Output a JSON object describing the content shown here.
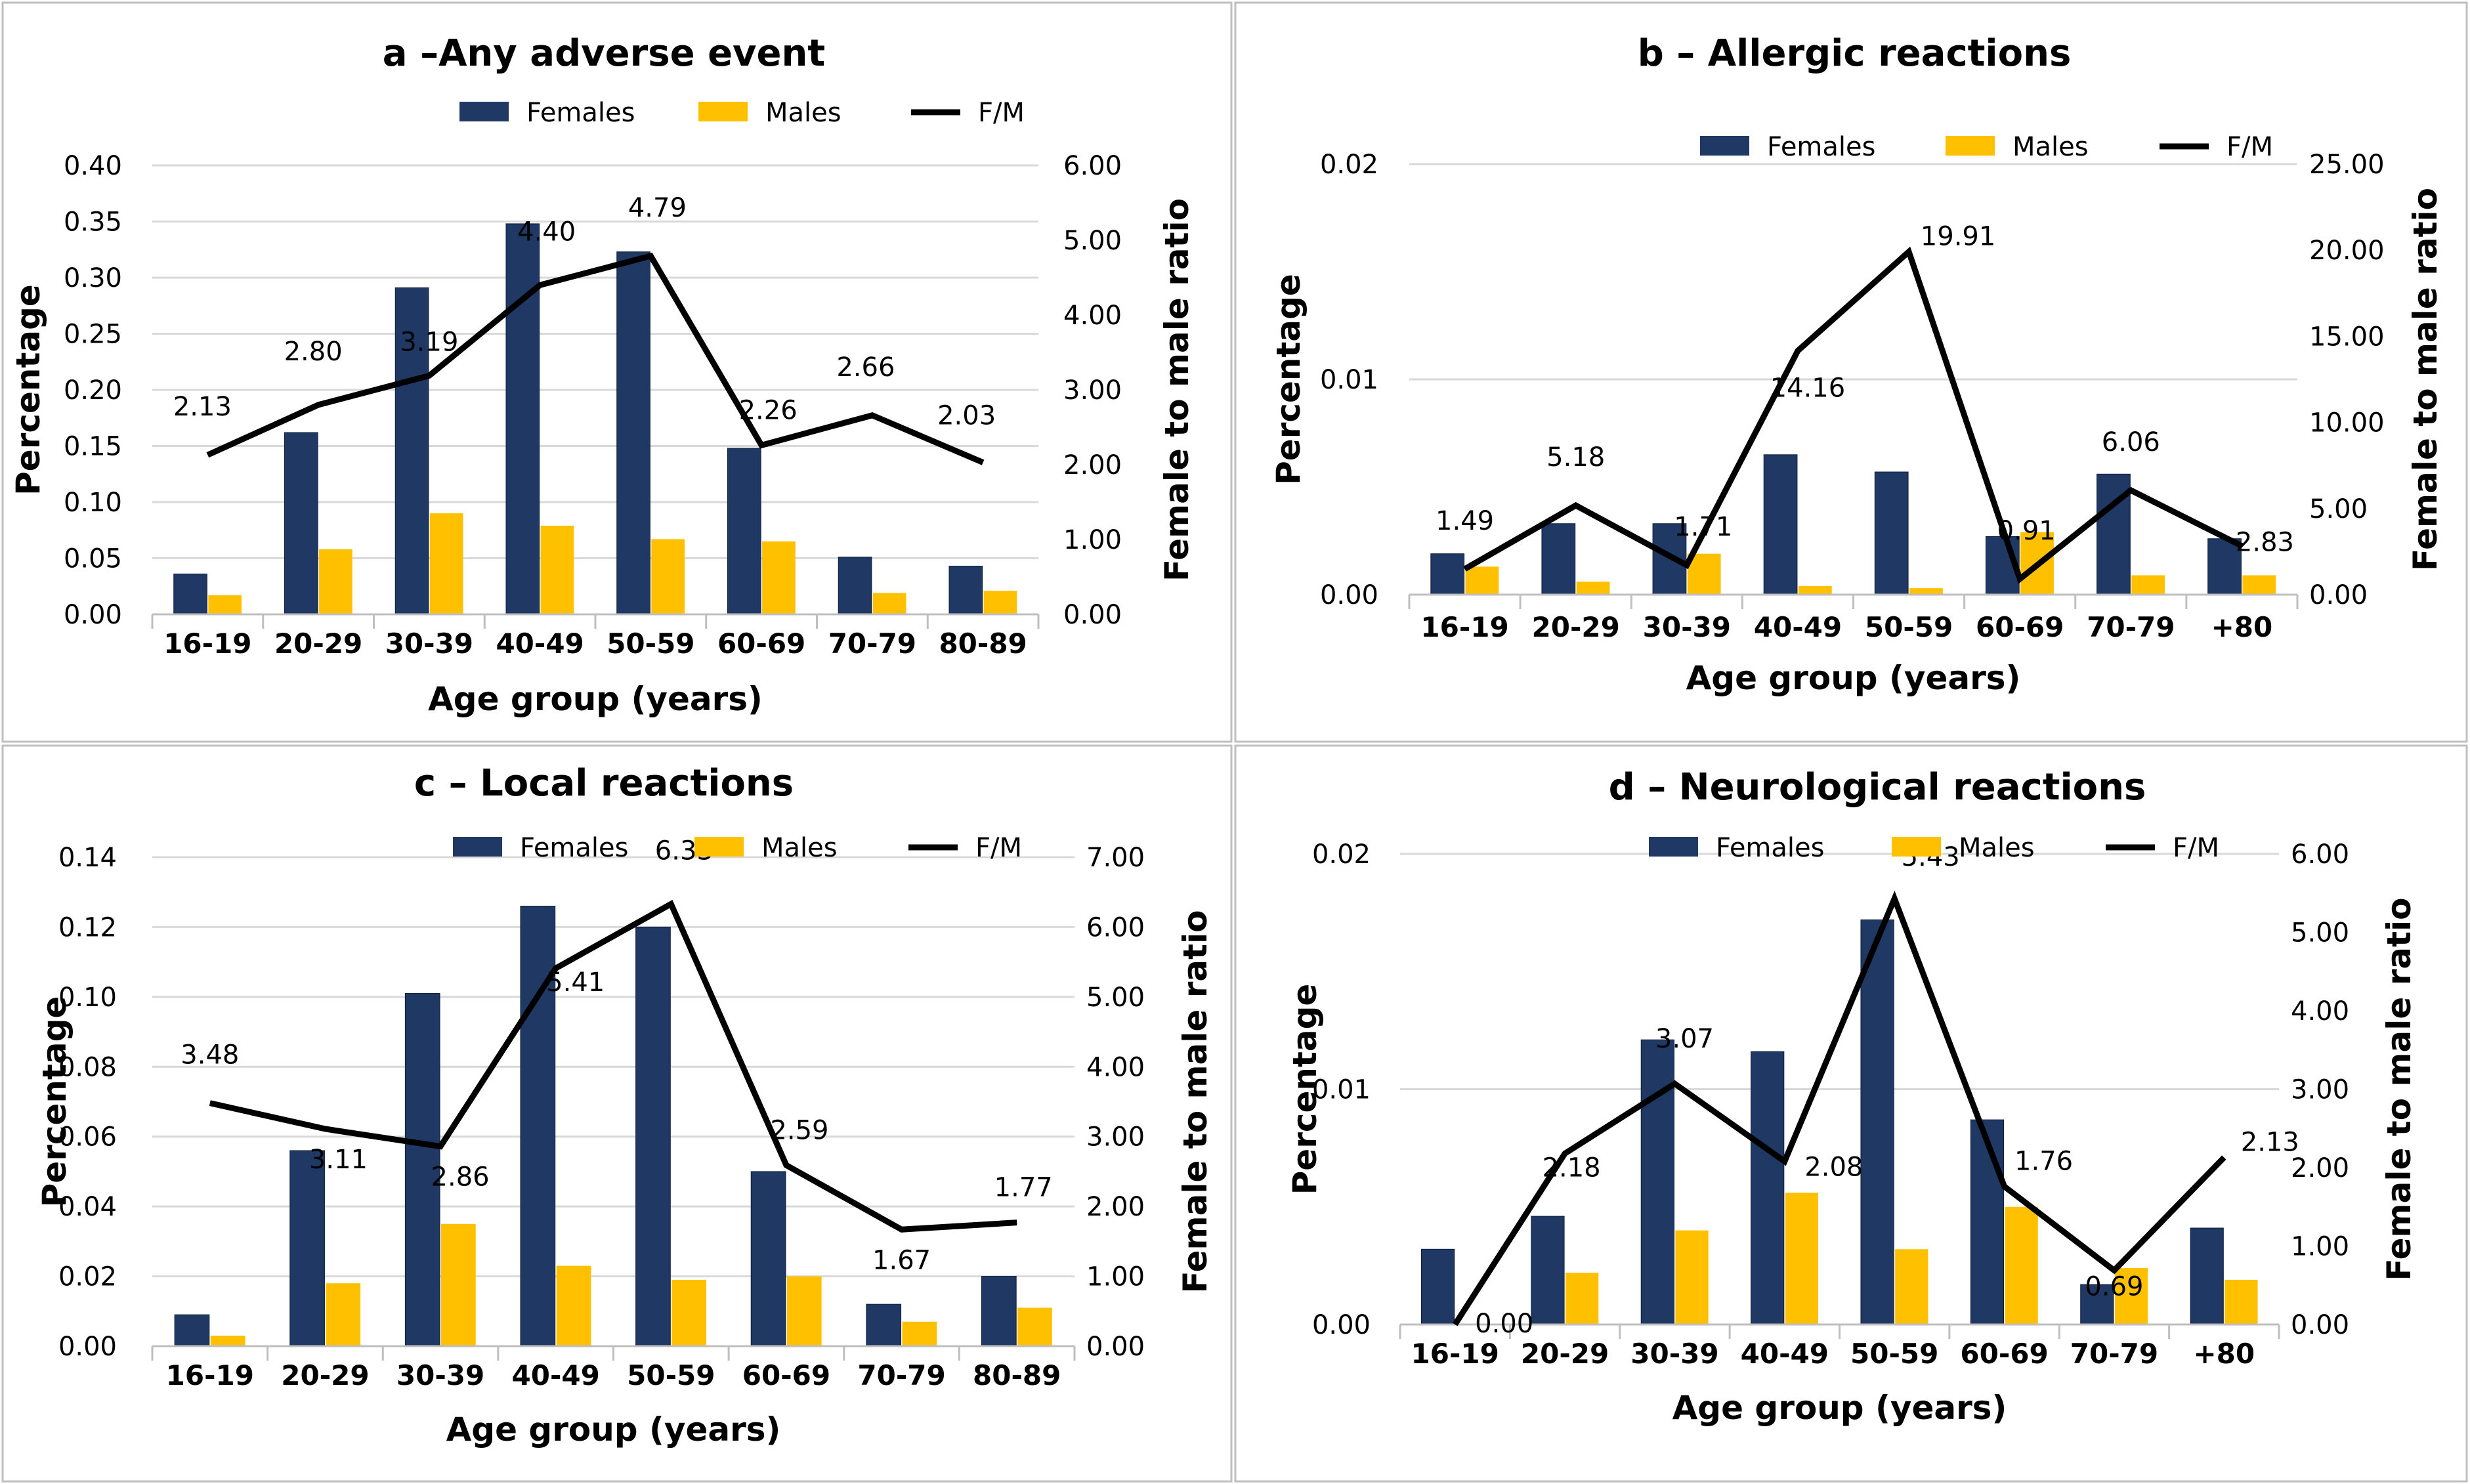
{
  "colors": {
    "females": "#1F3864",
    "males": "#FFC000",
    "ratio": "#000000",
    "grid": "#D9D9D9",
    "border": "#BFBFBF"
  },
  "legend": {
    "females": "Females",
    "males": "Males",
    "ratio": "F/M"
  },
  "chart_data": [
    {
      "type": "bar",
      "title": "a –Any adverse event",
      "xlabel": "Age group (years)",
      "ylabel": "Percentage",
      "y2label": "Female to male ratio",
      "categories": [
        "16-19",
        "20-29",
        "30-39",
        "40-49",
        "50-59",
        "60-69",
        "70-79",
        "80-89"
      ],
      "ylim": [
        0,
        0.4
      ],
      "yticks": [
        "0.00",
        "0.05",
        "0.10",
        "0.15",
        "0.20",
        "0.25",
        "0.30",
        "0.35",
        "0.40"
      ],
      "y2lim": [
        0,
        6
      ],
      "y2ticks": [
        "0.00",
        "1.00",
        "2.00",
        "3.00",
        "4.00",
        "5.00",
        "6.00"
      ],
      "series": [
        {
          "name": "Females",
          "values": [
            0.036,
            0.162,
            0.291,
            0.348,
            0.323,
            0.148,
            0.051,
            0.043
          ]
        },
        {
          "name": "Males",
          "values": [
            0.017,
            0.058,
            0.09,
            0.079,
            0.067,
            0.065,
            0.019,
            0.021
          ]
        },
        {
          "name": "F/M",
          "values": [
            2.13,
            2.8,
            3.19,
            4.4,
            4.79,
            2.26,
            2.66,
            2.03
          ]
        }
      ],
      "ratio_labels": [
        "2.13",
        "2.80",
        "3.19",
        "4.40",
        "4.79",
        "2.26",
        "2.66",
        "2.03"
      ]
    },
    {
      "type": "bar",
      "title": "b – Allergic reactions",
      "xlabel": "Age group (years)",
      "ylabel": "Percentage",
      "y2label": "Female to male ratio",
      "categories": [
        "16-19",
        "20-29",
        "30-39",
        "40-49",
        "50-59",
        "60-69",
        "70-79",
        "+80"
      ],
      "ylim": [
        0,
        0.02
      ],
      "yticks": [
        "0.00",
        "0.01",
        "0.02"
      ],
      "y2lim": [
        0,
        25
      ],
      "y2ticks": [
        "0.00",
        "5.00",
        "10.00",
        "15.00",
        "20.00",
        "25.00"
      ],
      "series": [
        {
          "name": "Females",
          "values": [
            0.0019,
            0.0033,
            0.0033,
            0.0065,
            0.0057,
            0.0027,
            0.0056,
            0.0026
          ]
        },
        {
          "name": "Males",
          "values": [
            0.0013,
            0.0006,
            0.0019,
            0.0004,
            0.0003,
            0.0029,
            0.0009,
            0.0009
          ]
        },
        {
          "name": "F/M",
          "values": [
            1.49,
            5.18,
            1.71,
            14.16,
            19.91,
            0.91,
            6.06,
            2.83
          ]
        }
      ],
      "ratio_labels": [
        "1.49",
        "5.18",
        "1.71",
        "14.16",
        "19.91",
        "0.91",
        "6.06",
        "2.83"
      ]
    },
    {
      "type": "bar",
      "title": "c – Local reactions",
      "xlabel": "Age group (years)",
      "ylabel": "Percentage",
      "y2label": "Female to male ratio",
      "categories": [
        "16-19",
        "20-29",
        "30-39",
        "40-49",
        "50-59",
        "60-69",
        "70-79",
        "80-89"
      ],
      "ylim": [
        0,
        0.14
      ],
      "yticks": [
        "0.00",
        "0.02",
        "0.04",
        "0.06",
        "0.08",
        "0.10",
        "0.12",
        "0.14"
      ],
      "y2lim": [
        0,
        7
      ],
      "y2ticks": [
        "0.00",
        "1.00",
        "2.00",
        "3.00",
        "4.00",
        "5.00",
        "6.00",
        "7.00"
      ],
      "series": [
        {
          "name": "Females",
          "values": [
            0.009,
            0.056,
            0.101,
            0.126,
            0.12,
            0.05,
            0.012,
            0.02
          ]
        },
        {
          "name": "Males",
          "values": [
            0.003,
            0.018,
            0.035,
            0.023,
            0.019,
            0.02,
            0.007,
            0.011
          ]
        },
        {
          "name": "F/M",
          "values": [
            3.48,
            3.11,
            2.86,
            5.41,
            6.33,
            2.59,
            1.67,
            1.77
          ]
        }
      ],
      "ratio_labels": [
        "3.48",
        "3.11",
        "2.86",
        "5.41",
        "6.33",
        "2.59",
        "1.67",
        "1.77"
      ]
    },
    {
      "type": "bar",
      "title": "d – Neurological reactions",
      "xlabel": "Age group (years)",
      "ylabel": "Percentage",
      "y2label": "Female to male ratio",
      "categories": [
        "16-19",
        "20-29",
        "30-39",
        "40-49",
        "50-59",
        "60-69",
        "70-79",
        "+80"
      ],
      "ylim": [
        0,
        0.02
      ],
      "yticks": [
        "0.00",
        "0.01",
        "0.02"
      ],
      "y2lim": [
        0,
        6
      ],
      "y2ticks": [
        "0.00",
        "1.00",
        "2.00",
        "3.00",
        "4.00",
        "5.00",
        "6.00"
      ],
      "series": [
        {
          "name": "Females",
          "values": [
            0.0032,
            0.0046,
            0.0121,
            0.0116,
            0.0172,
            0.0087,
            0.0017,
            0.0041
          ]
        },
        {
          "name": "Males",
          "values": [
            0.0,
            0.0022,
            0.004,
            0.0056,
            0.0032,
            0.005,
            0.0024,
            0.0019
          ]
        },
        {
          "name": "F/M",
          "values": [
            0.0,
            2.18,
            3.07,
            2.08,
            5.43,
            1.76,
            0.69,
            2.13
          ]
        }
      ],
      "ratio_labels": [
        "0.00",
        "2.18",
        "3.07",
        "2.08",
        "5.43",
        "1.76",
        "0.69",
        "2.13"
      ]
    }
  ]
}
